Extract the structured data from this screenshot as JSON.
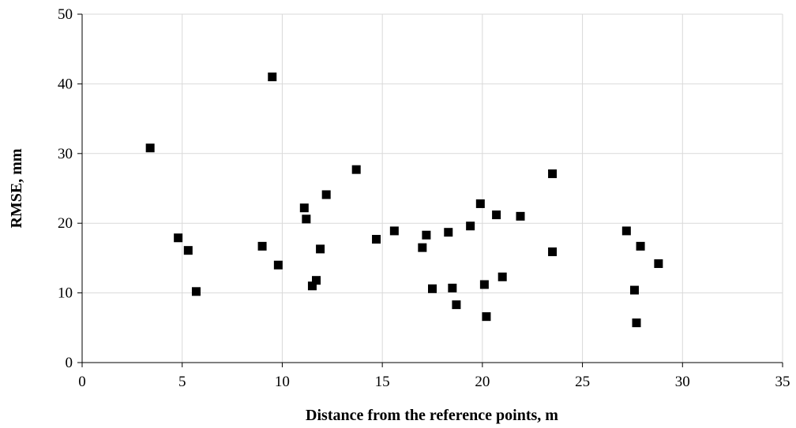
{
  "chart_data": {
    "type": "scatter",
    "title": "",
    "xlabel": "Distance from the reference points, m",
    "ylabel": "RMSE, mm",
    "xlim": [
      0,
      35
    ],
    "ylim": [
      0,
      50
    ],
    "x_ticks": [
      0,
      5,
      10,
      15,
      20,
      25,
      30,
      35
    ],
    "y_ticks": [
      0,
      10,
      20,
      30,
      40,
      50
    ],
    "x_tick_labels": [
      "0",
      "5",
      "10",
      "15",
      "20",
      "25",
      "30",
      "35"
    ],
    "y_tick_labels": [
      "0",
      "10",
      "20",
      "30",
      "40",
      "50"
    ],
    "grid": true,
    "legend": "none",
    "marker": "square",
    "marker_color": "#000000",
    "grid_color": "#d9d9d9",
    "points": [
      {
        "x": 3.4,
        "y": 30.8
      },
      {
        "x": 4.8,
        "y": 17.9
      },
      {
        "x": 5.3,
        "y": 16.1
      },
      {
        "x": 5.7,
        "y": 10.2
      },
      {
        "x": 9.0,
        "y": 16.7
      },
      {
        "x": 9.5,
        "y": 41.0
      },
      {
        "x": 9.8,
        "y": 14.0
      },
      {
        "x": 11.1,
        "y": 22.2
      },
      {
        "x": 11.2,
        "y": 20.6
      },
      {
        "x": 11.5,
        "y": 11.0
      },
      {
        "x": 11.7,
        "y": 11.8
      },
      {
        "x": 11.9,
        "y": 16.3
      },
      {
        "x": 12.2,
        "y": 24.1
      },
      {
        "x": 13.7,
        "y": 27.7
      },
      {
        "x": 14.7,
        "y": 17.7
      },
      {
        "x": 15.6,
        "y": 18.9
      },
      {
        "x": 17.0,
        "y": 16.5
      },
      {
        "x": 17.2,
        "y": 18.3
      },
      {
        "x": 17.5,
        "y": 10.6
      },
      {
        "x": 18.3,
        "y": 18.7
      },
      {
        "x": 18.5,
        "y": 10.7
      },
      {
        "x": 18.7,
        "y": 8.3
      },
      {
        "x": 19.4,
        "y": 19.6
      },
      {
        "x": 19.9,
        "y": 22.8
      },
      {
        "x": 20.1,
        "y": 11.2
      },
      {
        "x": 20.2,
        "y": 6.6
      },
      {
        "x": 20.7,
        "y": 21.2
      },
      {
        "x": 21.0,
        "y": 12.3
      },
      {
        "x": 21.9,
        "y": 21.0
      },
      {
        "x": 23.5,
        "y": 27.1
      },
      {
        "x": 23.5,
        "y": 15.9
      },
      {
        "x": 27.2,
        "y": 18.9
      },
      {
        "x": 27.6,
        "y": 10.4
      },
      {
        "x": 27.7,
        "y": 5.7
      },
      {
        "x": 27.9,
        "y": 16.7
      },
      {
        "x": 28.8,
        "y": 14.2
      }
    ]
  }
}
